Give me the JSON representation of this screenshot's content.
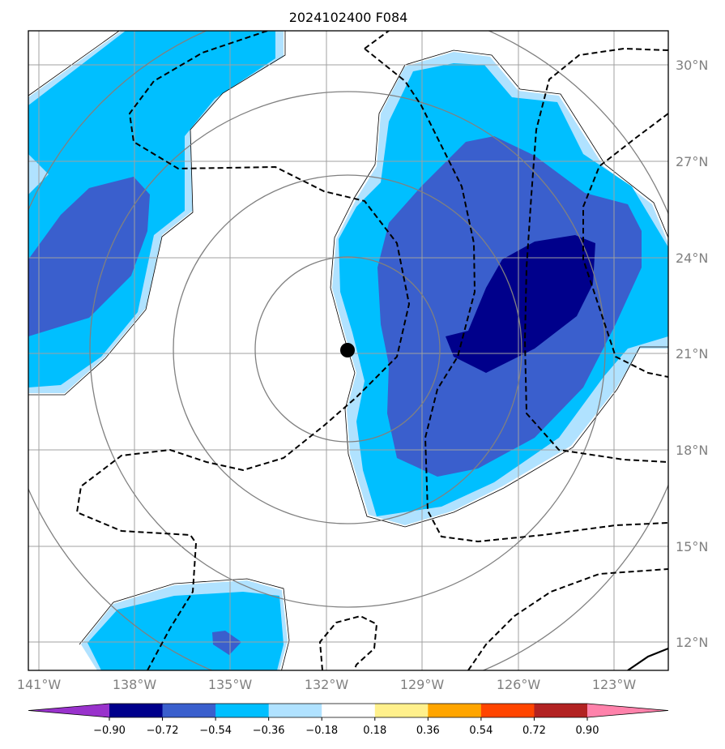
{
  "title": "2024102400 F084",
  "chart_data": {
    "type": "contour-map",
    "title": "2024102400 F084",
    "lon_range": [
      -141.0,
      -120.0
    ],
    "lat_range": [
      11.0,
      31.0
    ],
    "lon_ticks": [
      {
        "value": -141,
        "label": "141°W"
      },
      {
        "value": -138,
        "label": "138°W"
      },
      {
        "value": -135,
        "label": "135°W"
      },
      {
        "value": -132,
        "label": "132°W"
      },
      {
        "value": -129,
        "label": "129°W"
      },
      {
        "value": -126,
        "label": "126°W"
      },
      {
        "value": -123,
        "label": "123°W"
      }
    ],
    "lat_ticks": [
      {
        "value": 30,
        "label": "30°N"
      },
      {
        "value": 27,
        "label": "27°N"
      },
      {
        "value": 24,
        "label": "24°N"
      },
      {
        "value": 21,
        "label": "21°N"
      },
      {
        "value": 18,
        "label": "18°N"
      },
      {
        "value": 15,
        "label": "15°N"
      },
      {
        "value": 12,
        "label": "12°N"
      }
    ],
    "center_marker": {
      "lon": -131.0,
      "lat": 21.1
    },
    "range_rings_count": 4,
    "colorbar": {
      "levels": [
        -0.9,
        -0.72,
        -0.54,
        -0.36,
        -0.18,
        0.18,
        0.36,
        0.54,
        0.72,
        0.9
      ],
      "tick_labels": [
        "−0.90",
        "−0.72",
        "−0.54",
        "−0.36",
        "−0.18",
        "0.18",
        "0.36",
        "0.54",
        "0.72",
        "0.90"
      ],
      "colors": [
        "#9932cc",
        "#00008b",
        "#3a5fcd",
        "#00bfff",
        "#b0e2ff",
        "#ffffff",
        "#fff08c",
        "#ffa500",
        "#ff4500",
        "#b22222",
        "#ff82ab"
      ],
      "extend": "both"
    },
    "grid": true
  }
}
